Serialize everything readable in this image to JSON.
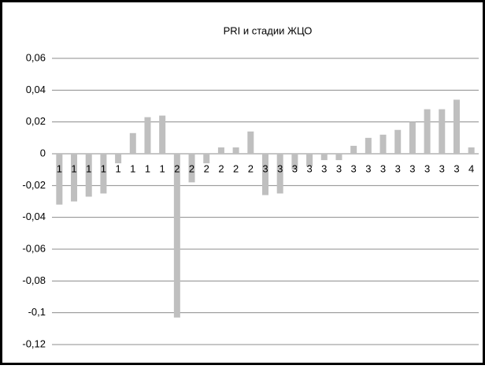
{
  "chart_data": {
    "type": "bar",
    "title": "PRI и стадии ЖЦО",
    "categories": [
      "1",
      "1",
      "1",
      "1",
      "1",
      "1",
      "1",
      "1",
      "2",
      "2",
      "2",
      "2",
      "2",
      "2",
      "3",
      "3",
      "3",
      "3",
      "3",
      "3",
      "3",
      "3",
      "3",
      "3",
      "3",
      "3",
      "3",
      "3",
      "4"
    ],
    "values": [
      -0.032,
      -0.03,
      -0.027,
      -0.025,
      -0.006,
      0.013,
      0.023,
      0.024,
      -0.103,
      -0.018,
      -0.006,
      0.004,
      0.004,
      0.014,
      -0.026,
      -0.025,
      -0.01,
      -0.008,
      -0.004,
      -0.004,
      0.005,
      0.01,
      0.012,
      0.015,
      0.02,
      0.028,
      0.028,
      0.034,
      0.004
    ],
    "color": "#bfbfbf",
    "ylim": [
      -0.12,
      0.06
    ],
    "yticks": [
      {
        "value": -0.12,
        "label": "-0,12"
      },
      {
        "value": -0.1,
        "label": "-0,1"
      },
      {
        "value": -0.08,
        "label": "-0,08"
      },
      {
        "value": -0.06,
        "label": "-0,06"
      },
      {
        "value": -0.04,
        "label": "-0,04"
      },
      {
        "value": -0.02,
        "label": "-0,02"
      },
      0,
      {
        "value": 0.02,
        "label": "0,02"
      },
      {
        "value": 0.04,
        "label": "0,04"
      },
      {
        "value": 0.06,
        "label": "0,06"
      }
    ],
    "grid": true
  }
}
